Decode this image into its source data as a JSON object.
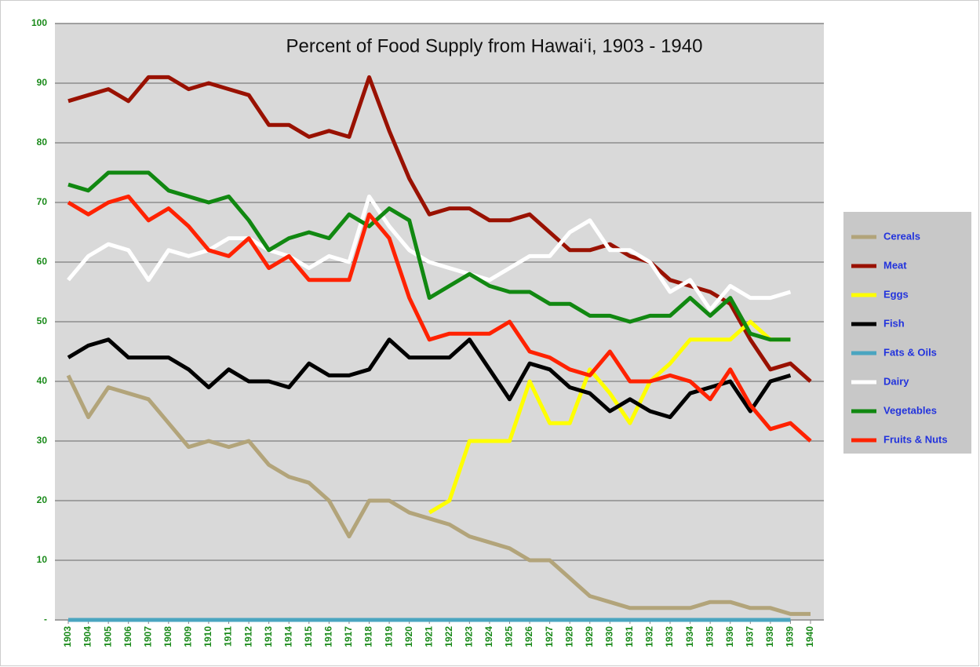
{
  "chart_data": {
    "type": "line",
    "title": "Percent of Food Supply from Hawai‘i, 1903 - 1940",
    "categories": [
      "1903",
      "1904",
      "1905",
      "1906",
      "1907",
      "1908",
      "1909",
      "1910",
      "1911",
      "1912",
      "1913",
      "1914",
      "1915",
      "1916",
      "1917",
      "1918",
      "1919",
      "1920",
      "1921",
      "1922",
      "1923",
      "1924",
      "1925",
      "1926",
      "1927",
      "1928",
      "1929",
      "1930",
      "1931",
      "1932",
      "1933",
      "1934",
      "1935",
      "1936",
      "1937",
      "1938",
      "1939",
      "1940"
    ],
    "series": [
      {
        "name": "Cereals",
        "color": "#b2a47a",
        "values": [
          41,
          34,
          39,
          38,
          37,
          33,
          29,
          30,
          29,
          30,
          26,
          24,
          23,
          20,
          14,
          20,
          20,
          18,
          17,
          16,
          14,
          13,
          12,
          10,
          10,
          7,
          4,
          3,
          2,
          2,
          2,
          2,
          3,
          3,
          2,
          2,
          1,
          1
        ]
      },
      {
        "name": "Meat",
        "color": "#991100",
        "values": [
          87,
          88,
          89,
          87,
          91,
          91,
          89,
          90,
          89,
          88,
          83,
          83,
          81,
          82,
          81,
          91,
          82,
          74,
          68,
          69,
          69,
          67,
          67,
          68,
          65,
          62,
          62,
          63,
          61,
          60,
          57,
          56,
          55,
          53,
          47,
          42,
          43,
          40
        ]
      },
      {
        "name": "Eggs",
        "color": "#ffff00",
        "values": [
          null,
          null,
          null,
          null,
          null,
          null,
          null,
          null,
          null,
          null,
          null,
          null,
          null,
          null,
          null,
          null,
          null,
          null,
          18,
          20,
          30,
          30,
          30,
          40,
          33,
          33,
          42,
          38,
          33,
          40,
          43,
          47,
          47,
          47,
          50,
          47,
          47,
          null
        ]
      },
      {
        "name": "Fish",
        "color": "#000000",
        "values": [
          44,
          46,
          47,
          44,
          44,
          44,
          42,
          39,
          42,
          40,
          40,
          39,
          43,
          41,
          41,
          42,
          47,
          44,
          44,
          44,
          47,
          42,
          37,
          43,
          42,
          39,
          38,
          35,
          37,
          35,
          34,
          38,
          39,
          40,
          35,
          40,
          41,
          null
        ]
      },
      {
        "name": "Fats & Oils",
        "color": "#4aa5c0",
        "values": [
          0,
          0,
          0,
          0,
          0,
          0,
          0,
          0,
          0,
          0,
          0,
          0,
          0,
          0,
          0,
          0,
          0,
          0,
          0,
          0,
          0,
          0,
          0,
          0,
          0,
          0,
          0,
          0,
          0,
          0,
          0,
          0,
          0,
          0,
          0,
          0,
          0,
          null
        ]
      },
      {
        "name": "Dairy",
        "color": "#ffffff",
        "values": [
          57,
          61,
          63,
          62,
          57,
          62,
          61,
          62,
          64,
          64,
          62,
          61,
          59,
          61,
          60,
          71,
          66,
          62,
          60,
          59,
          58,
          57,
          59,
          61,
          61,
          65,
          67,
          62,
          62,
          60,
          55,
          57,
          52,
          56,
          54,
          54,
          55,
          null
        ]
      },
      {
        "name": "Vegetables",
        "color": "#118811",
        "values": [
          73,
          72,
          75,
          75,
          75,
          72,
          71,
          70,
          71,
          67,
          62,
          64,
          65,
          64,
          68,
          66,
          69,
          67,
          54,
          56,
          58,
          56,
          55,
          55,
          53,
          53,
          51,
          51,
          50,
          51,
          51,
          54,
          51,
          54,
          48,
          47,
          47,
          null
        ]
      },
      {
        "name": "Fruits & Nuts",
        "color": "#ff2200",
        "values": [
          70,
          68,
          70,
          71,
          67,
          69,
          66,
          62,
          61,
          64,
          59,
          61,
          57,
          57,
          57,
          68,
          64,
          54,
          47,
          48,
          48,
          48,
          50,
          45,
          44,
          42,
          41,
          45,
          40,
          40,
          41,
          40,
          37,
          42,
          36,
          32,
          33,
          30
        ]
      }
    ],
    "ylim": [
      0,
      100
    ],
    "yticks": [
      {
        "value": 0,
        "label": "-"
      },
      10,
      20,
      30,
      40,
      50,
      60,
      70,
      80,
      90,
      100
    ],
    "grid": true,
    "legend": "right"
  }
}
